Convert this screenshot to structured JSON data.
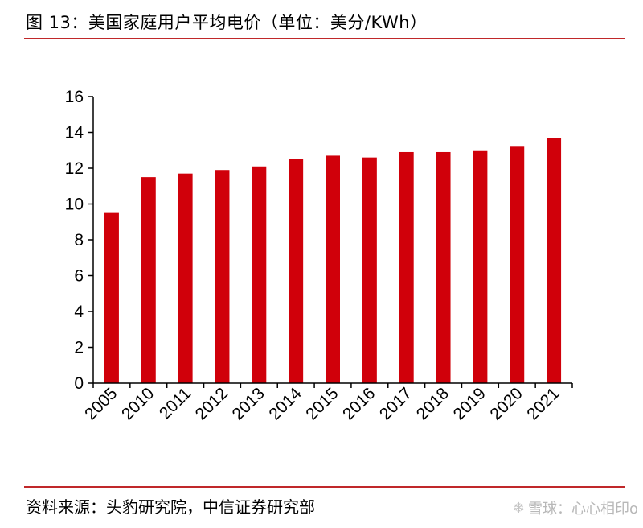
{
  "title": "图 13：美国家庭用户平均电价（单位：美分/KWh）",
  "source": "资料来源：头豹研究院，中信证券研究部",
  "watermark": {
    "icon": "snowball-icon",
    "text": "雪球：心心相印o"
  },
  "colors": {
    "bar": "#d0000a",
    "rule": "#c0282a",
    "axis": "#000000"
  },
  "chart_data": {
    "type": "bar",
    "categories": [
      "2005",
      "2010",
      "2011",
      "2012",
      "2013",
      "2014",
      "2015",
      "2016",
      "2017",
      "2018",
      "2019",
      "2020",
      "2021"
    ],
    "values": [
      9.5,
      11.5,
      11.7,
      11.9,
      12.1,
      12.5,
      12.7,
      12.6,
      12.9,
      12.9,
      13.0,
      13.2,
      13.7
    ],
    "title": "",
    "xlabel": "",
    "ylabel": "",
    "ylim": [
      0,
      16
    ],
    "yticks": [
      0,
      2,
      4,
      6,
      8,
      10,
      12,
      14,
      16
    ],
    "grid": false,
    "legend": "none"
  }
}
